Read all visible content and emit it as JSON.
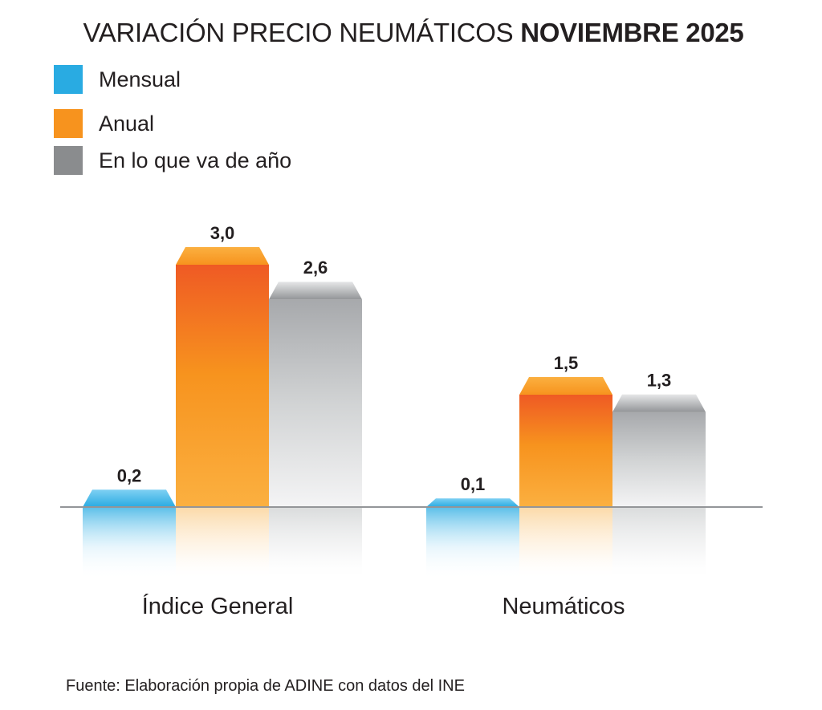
{
  "chart_data": {
    "type": "bar",
    "title": "VARIACIÓN PRECIO NEUMÁTICOS",
    "title_bold": "NOVIEMBRE 2025",
    "categories": [
      "Índice General",
      "Neumáticos"
    ],
    "series": [
      {
        "name": "Mensual",
        "values": [
          0.2,
          0.1
        ],
        "labels": [
          "0,2",
          "0,1"
        ],
        "color": "#29abe2"
      },
      {
        "name": "Anual",
        "values": [
          3.0,
          1.5
        ],
        "labels": [
          "3,0",
          "1,5"
        ],
        "color": "#f7931e"
      },
      {
        "name": "En lo que va de año",
        "values": [
          2.6,
          1.3
        ],
        "labels": [
          "2,6",
          "1,3"
        ],
        "color": "#8a8c8e"
      }
    ],
    "legend_position": "top-left",
    "grid": false
  },
  "footer": {
    "source": "Fuente: Elaboración propia de ADINE con datos del INE"
  }
}
